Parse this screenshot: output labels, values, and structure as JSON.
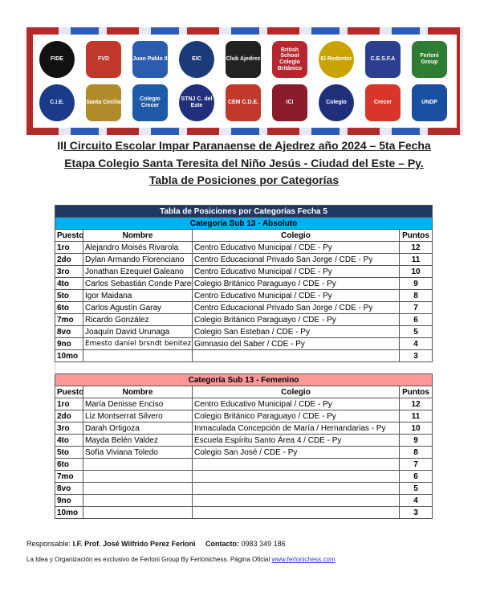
{
  "banner": {
    "logos": [
      "FIDE",
      "FVD",
      "Juan Pablo II",
      "EIC",
      "Club Ajedrez",
      "British School Colegio Británico",
      "El Redentor",
      "C.E.S.F.A",
      "Ferloni Group",
      "C.I.E.",
      "Santa Cecilia",
      "Colegio Crecer",
      "STNJ C. del Este",
      "CEM C.D.E.",
      "ICI",
      "Colegio",
      "Crecer",
      "UNDP"
    ]
  },
  "header": {
    "line1_prefix": "II",
    "line1": "I Circuito Escolar Impar Paranaense de Ajedrez año 2024 – 5ta Fecha",
    "line2": "Etapa Colegio Santa Teresita del Niño Jesús - Ciudad del Este – Py.",
    "line3": "Tabla de Posiciones por Categorías"
  },
  "table": {
    "title": "Tabla de Posiciones por Categorías Fecha 5",
    "columns": [
      "Puesto",
      "Nombre",
      "Colegio",
      "Puntos"
    ],
    "categories": [
      {
        "name": "Categoria Sub 13 - Absoluto",
        "rows": [
          {
            "puesto": "1ro",
            "nombre": "Alejandro Moisés Rivarola",
            "colegio": "Centro Educativo Municipal / CDE - Py",
            "puntos": "12"
          },
          {
            "puesto": "2do",
            "nombre": "Dylan Armando Florenciano",
            "colegio": "Centro Educacional Privado San Jorge / CDE - Py",
            "puntos": "11"
          },
          {
            "puesto": "3ro",
            "nombre": "Jonathan Ezequiel Galeano",
            "colegio": "Centro Educativo Municipal / CDE - Py",
            "puntos": "10"
          },
          {
            "puesto": "4to",
            "nombre": "Carlos Sebastián Conde Pared",
            "colegio": "Colegio Británico Paraguayo / CDE - Py",
            "puntos": "9"
          },
          {
            "puesto": "5to",
            "nombre": "Igor Maidana",
            "colegio": "Centro Educativo Municipal / CDE - Py",
            "puntos": "8"
          },
          {
            "puesto": "6to",
            "nombre": "Carlos Agustín Garay",
            "colegio": "Centro Educacional Privado San Jorge / CDE - Py",
            "puntos": "7"
          },
          {
            "puesto": "7mo",
            "nombre": "Ricardo González",
            "colegio": "Colegio Británico Paraguayo / CDE - Py",
            "puntos": "6"
          },
          {
            "puesto": "8vo",
            "nombre": "Joaquín David Urunaga",
            "colegio": "Colegio San Esteban / CDE - Py",
            "puntos": "5"
          },
          {
            "puesto": "9no",
            "nombre": "Emesto daniel brsndt benitez",
            "colegio": "Gimnasio del Saber / CDE - Py",
            "puntos": "4"
          },
          {
            "puesto": "10mo",
            "nombre": "",
            "colegio": "",
            "puntos": "3"
          }
        ]
      },
      {
        "name": "Categoría Sub 13 - Femenino",
        "rows": [
          {
            "puesto": "1ro",
            "nombre": "María Denisse Enciso",
            "colegio": "Centro Educativo Municipal / CDE - Py",
            "puntos": "12"
          },
          {
            "puesto": "2do",
            "nombre": "Liz Montserrat Silvero",
            "colegio": "Colegio Británico Paraguayo / CDE - Py",
            "puntos": "11"
          },
          {
            "puesto": "3ro",
            "nombre": "Darah Ortigoza",
            "colegio": "Inmaculada Concepción de María / Hernandarias - Py",
            "puntos": "10"
          },
          {
            "puesto": "4to",
            "nombre": "Mayda Belén Valdez",
            "colegio": "Escuela Espíritu Santo Área 4 / CDE - Py",
            "puntos": "9"
          },
          {
            "puesto": "5to",
            "nombre": "Sofía Viviana Toledo",
            "colegio": "Colegio San José / CDE - Py",
            "puntos": "8"
          },
          {
            "puesto": "6to",
            "nombre": "",
            "colegio": "",
            "puntos": "7"
          },
          {
            "puesto": "7mo",
            "nombre": "",
            "colegio": "",
            "puntos": "6"
          },
          {
            "puesto": "8vo",
            "nombre": "",
            "colegio": "",
            "puntos": "5"
          },
          {
            "puesto": "9no",
            "nombre": "",
            "colegio": "",
            "puntos": "4"
          },
          {
            "puesto": "10mo",
            "nombre": "",
            "colegio": "",
            "puntos": "3"
          }
        ]
      }
    ]
  },
  "footer": {
    "responsable_label": "Responsable:",
    "responsable": "I.F. Prof. José Wilfrido Perez Ferloni",
    "contacto_label": "Contacto:",
    "contacto": "0983 349 186",
    "note": "La Idea y Organización es exclusivo de Ferloni Group By Ferlonichess. Página Oficial",
    "link": "www.ferlonichess.com"
  },
  "colors": {
    "title_bar": "#1f3864",
    "absoluto": "#00b0f0",
    "femenino": "#ff9999"
  }
}
